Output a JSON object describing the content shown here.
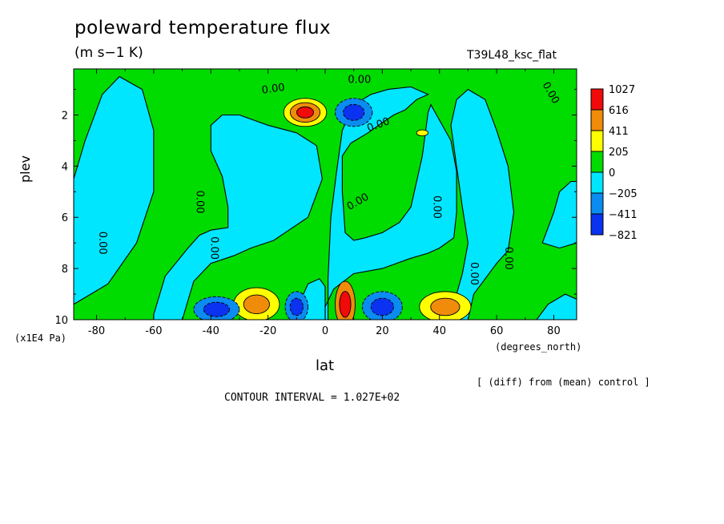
{
  "colors": {
    "red": "#f00a0a",
    "orange": "#f08c0a",
    "yellow": "#ffff00",
    "green": "#00dc00",
    "cyan": "#00e6ff",
    "midblue": "#0a8cf0",
    "blue": "#0a32f0",
    "line": "#000000"
  },
  "chart_data": {
    "type": "contour",
    "title": "poleward temperature flux",
    "units": "(m s−1 K)",
    "run_name": "T39L48_ksc_flat",
    "xlabel": "lat",
    "x_unit": "(degrees_north)",
    "ylabel": "plev",
    "y_unit": "(x1E4 Pa)",
    "xlim": [
      -88,
      88
    ],
    "ylim": [
      10,
      0.2
    ],
    "x_ticks": [
      -80,
      -60,
      -40,
      -20,
      0,
      20,
      40,
      60,
      80
    ],
    "y_ticks": [
      2,
      4,
      6,
      8,
      10
    ],
    "colorbar_levels": [
      "1027",
      "616",
      "411",
      "205",
      "0",
      "−205",
      "−411",
      "−821"
    ],
    "contour_labels": [
      "0.00",
      "0.00",
      "0.00",
      "0.00",
      "0.00",
      "0.00",
      "0.00",
      "0.00",
      "0.00",
      "0.00",
      "0.00"
    ],
    "diff_note": "[ (diff) from (mean) control ]",
    "contour_interval": "CONTOUR INTERVAL = 1.027E+02",
    "cyan_regions": [
      {
        "shape": "polygon",
        "lat_p": [
          [
            -88,
            4.5
          ],
          [
            -84,
            3.0
          ],
          [
            -78,
            1.2
          ],
          [
            -72,
            0.5
          ],
          [
            -64,
            1.0
          ],
          [
            -60,
            2.6
          ],
          [
            -60,
            5.0
          ],
          [
            -66,
            7.0
          ],
          [
            -76,
            8.6
          ],
          [
            -88,
            9.4
          ]
        ]
      },
      {
        "shape": "polygon",
        "lat_p": [
          [
            -50,
            10
          ],
          [
            -46,
            8.5
          ],
          [
            -40,
            7.8
          ],
          [
            -32,
            7.5
          ],
          [
            -26,
            7.2
          ],
          [
            -18,
            6.9
          ],
          [
            -14,
            6.6
          ],
          [
            -6,
            6.0
          ],
          [
            -1,
            4.5
          ],
          [
            -3,
            3.2
          ],
          [
            -10,
            2.7
          ],
          [
            -20,
            2.4
          ],
          [
            -30,
            2.0
          ],
          [
            -36,
            2.0
          ],
          [
            -40,
            2.4
          ],
          [
            -40,
            3.4
          ],
          [
            -36,
            4.4
          ],
          [
            -34,
            5.6
          ],
          [
            -34,
            6.4
          ],
          [
            -40,
            6.5
          ],
          [
            -44,
            6.7
          ],
          [
            -48,
            7.2
          ],
          [
            -56,
            8.3
          ],
          [
            -60,
            9.8
          ],
          [
            -60,
            10
          ]
        ]
      },
      {
        "shape": "polygon",
        "lat_p": [
          [
            0,
            10
          ],
          [
            0,
            9.5
          ],
          [
            3,
            8.8
          ],
          [
            10,
            8.2
          ],
          [
            20,
            8.0
          ],
          [
            30,
            7.6
          ],
          [
            36,
            7.4
          ],
          [
            40,
            7.2
          ],
          [
            45,
            6.8
          ],
          [
            46,
            5.8
          ],
          [
            46,
            4.2
          ],
          [
            44,
            3.0
          ],
          [
            40,
            2.2
          ],
          [
            37,
            1.6
          ],
          [
            36,
            1.9
          ],
          [
            34,
            3.6
          ],
          [
            32,
            4.6
          ],
          [
            30,
            5.6
          ],
          [
            26,
            6.2
          ],
          [
            20,
            6.6
          ],
          [
            14,
            6.8
          ],
          [
            10,
            6.9
          ],
          [
            7,
            6.6
          ],
          [
            6,
            5.0
          ],
          [
            6,
            3.6
          ],
          [
            9,
            3.1
          ],
          [
            15,
            2.7
          ],
          [
            20,
            2.3
          ],
          [
            24,
            2.0
          ],
          [
            28,
            1.8
          ],
          [
            32,
            1.4
          ],
          [
            36,
            1.2
          ],
          [
            30,
            0.9
          ],
          [
            22,
            1.0
          ],
          [
            16,
            1.2
          ],
          [
            10,
            1.6
          ],
          [
            6,
            2.6
          ],
          [
            4,
            4.2
          ],
          [
            2,
            6.0
          ],
          [
            1,
            8.4
          ],
          [
            1,
            10
          ]
        ]
      },
      {
        "shape": "polygon",
        "lat_p": [
          [
            50,
            10
          ],
          [
            52,
            9.0
          ],
          [
            56,
            8.4
          ],
          [
            60,
            7.8
          ],
          [
            64,
            7.3
          ],
          [
            66,
            5.8
          ],
          [
            64,
            4.0
          ],
          [
            60,
            2.6
          ],
          [
            56,
            1.4
          ],
          [
            50,
            1.0
          ],
          [
            46,
            1.4
          ],
          [
            44,
            2.4
          ],
          [
            46,
            4.0
          ],
          [
            48,
            5.6
          ],
          [
            50,
            7.0
          ],
          [
            48,
            8.2
          ],
          [
            46,
            9.0
          ],
          [
            40,
            10
          ]
        ]
      },
      {
        "shape": "polygon",
        "lat_p": [
          [
            74,
            10
          ],
          [
            78,
            9.4
          ],
          [
            84,
            9.0
          ],
          [
            88,
            9.2
          ],
          [
            88,
            10
          ]
        ]
      },
      {
        "shape": "polygon",
        "lat_p": [
          [
            76,
            7.0
          ],
          [
            80,
            5.8
          ],
          [
            82,
            5.0
          ],
          [
            86,
            4.6
          ],
          [
            88,
            4.6
          ],
          [
            88,
            7.0
          ],
          [
            82,
            7.2
          ]
        ]
      },
      {
        "shape": "polygon",
        "lat_p": [
          [
            -10,
            9.6
          ],
          [
            -6,
            8.6
          ],
          [
            -2,
            8.4
          ],
          [
            0,
            8.7
          ],
          [
            0,
            10
          ],
          [
            -10,
            10
          ]
        ]
      }
    ],
    "warm_cells": [
      {
        "lat": -7,
        "p": 1.9,
        "rx": 7.5,
        "ry": 0.55,
        "colors": [
          "yellow",
          "orange",
          "red"
        ]
      },
      {
        "lat": -24,
        "p": 9.4,
        "rx": 8,
        "ry": 0.65,
        "colors": [
          "yellow",
          "orange"
        ]
      },
      {
        "lat": 42,
        "p": 9.5,
        "rx": 9,
        "ry": 0.6,
        "colors": [
          "yellow",
          "orange"
        ]
      },
      {
        "lat": 7,
        "p": 9.4,
        "rx": 3.5,
        "ry": 0.9,
        "colors": [
          "orange",
          "red"
        ]
      },
      {
        "lat": 34,
        "p": 2.7,
        "rx": 2,
        "ry": 0.12,
        "colors": [
          "yellow"
        ]
      }
    ],
    "cold_cells": [
      {
        "lat": 10,
        "p": 1.9,
        "rx": 6.5,
        "ry": 0.55,
        "colors": [
          "midblue",
          "blue"
        ]
      },
      {
        "lat": -38,
        "p": 9.6,
        "rx": 8,
        "ry": 0.5,
        "colors": [
          "midblue",
          "blue"
        ]
      },
      {
        "lat": -10,
        "p": 9.5,
        "rx": 4,
        "ry": 0.6,
        "colors": [
          "midblue",
          "blue"
        ]
      },
      {
        "lat": 20,
        "p": 9.5,
        "rx": 7,
        "ry": 0.6,
        "colors": [
          "midblue",
          "blue"
        ]
      }
    ]
  }
}
